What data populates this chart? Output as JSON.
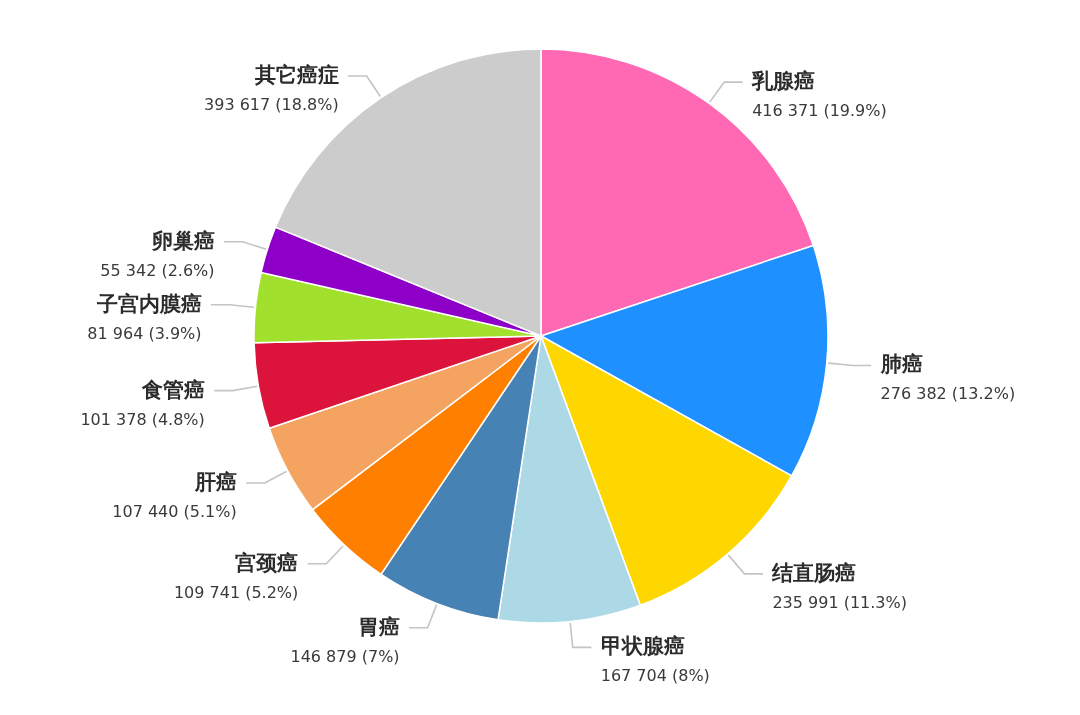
{
  "chart_data": {
    "type": "pie",
    "categories": [
      "乳腺癌",
      "肺癌",
      "结直肠癌",
      "甲状腺癌",
      "胃癌",
      "宫颈癌",
      "肝癌",
      "食管癌",
      "子宫内膜癌",
      "卵巢癌",
      "其它癌症"
    ],
    "values": [
      416371,
      276382,
      235991,
      167704,
      146879,
      109741,
      107440,
      101378,
      81964,
      55342,
      393617
    ],
    "colors": [
      "#ff69b4",
      "#1e90ff",
      "#ffd700",
      "#add8e6",
      "#4682b4",
      "#ff7f00",
      "#f4a460",
      "#dc143c",
      "#a2e02e",
      "#8e00c8",
      "#cccccc"
    ],
    "value_labels": [
      "416 371 (19.9%)",
      "276 382 (13.2%)",
      "235 991 (11.3%)",
      "167 704 (8%)",
      "146 879 (7%)",
      "109 741 (5.2%)",
      "107 440 (5.1%)",
      "101 378 (4.8%)",
      "81 964 (3.9%)",
      "55 342 (2.6%)",
      "393 617 (18.8%)"
    ]
  }
}
